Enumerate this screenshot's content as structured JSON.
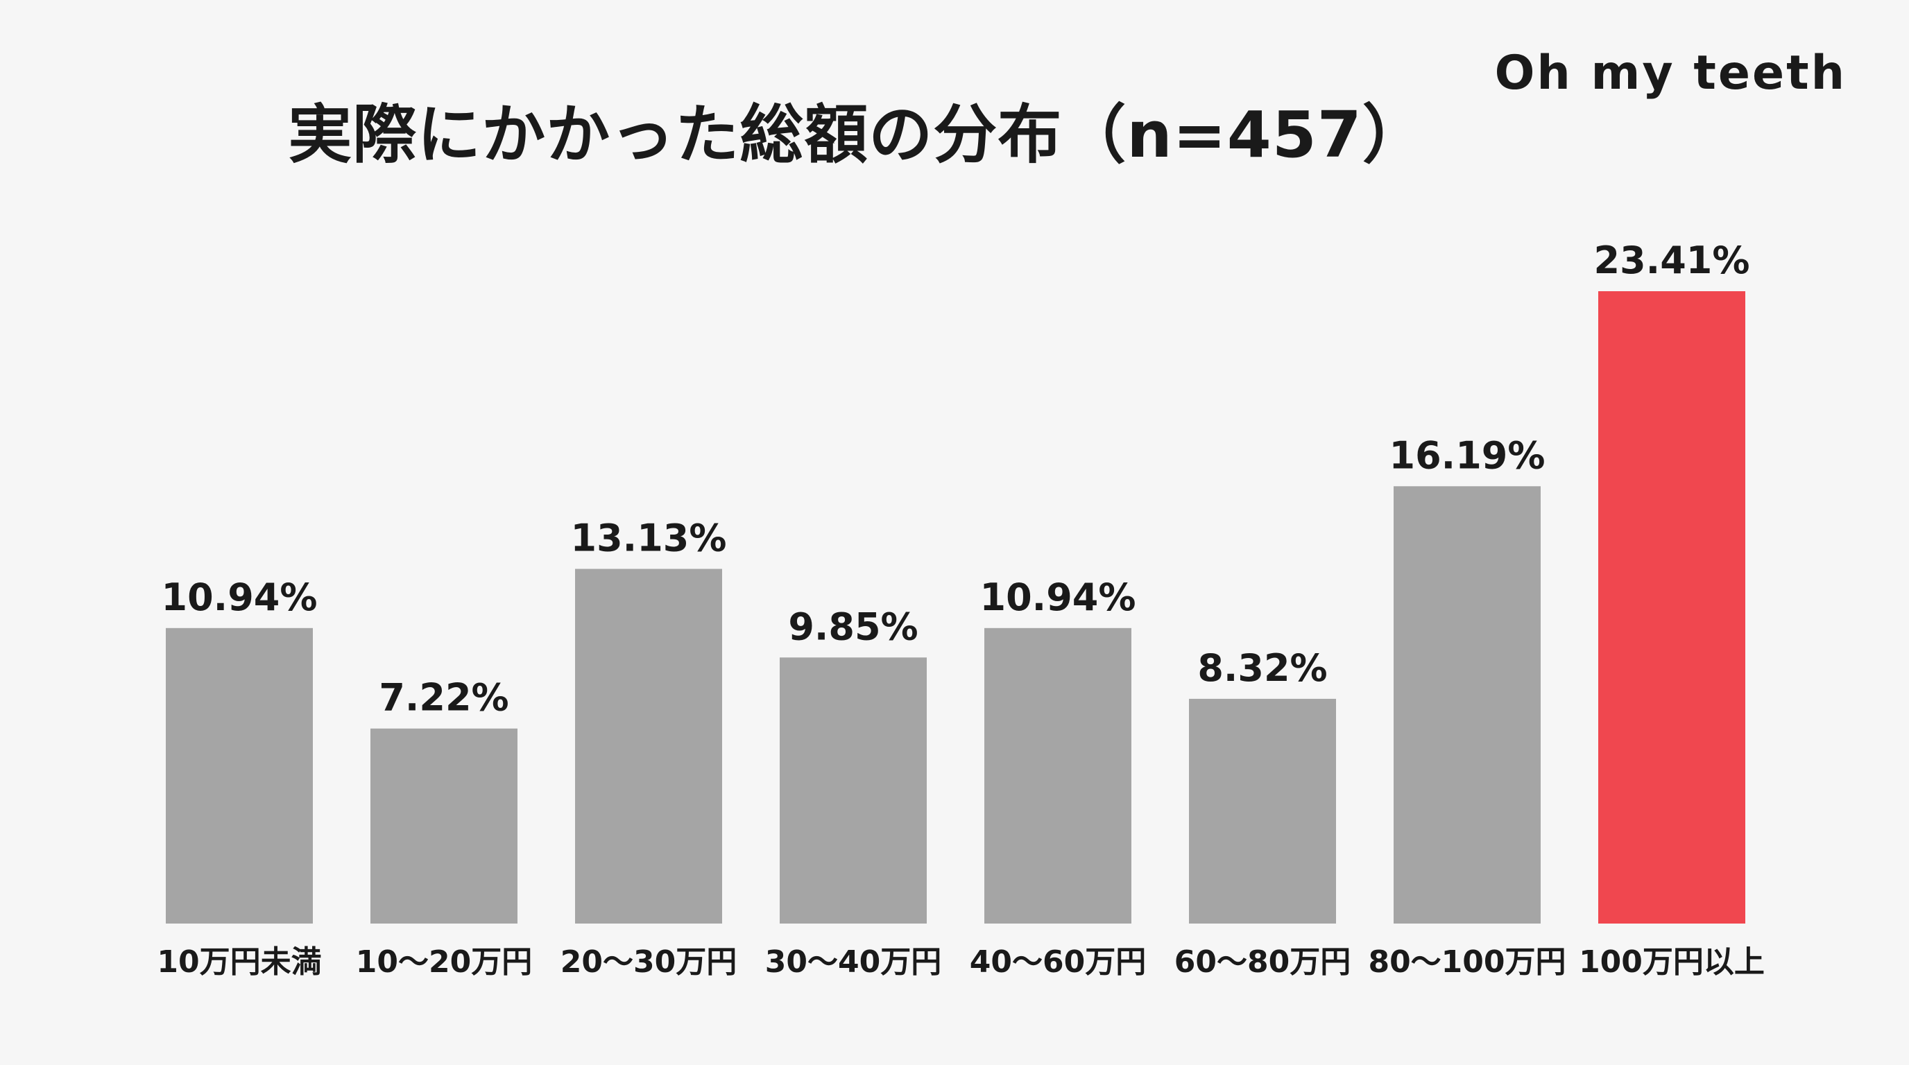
{
  "chart_data": {
    "type": "bar",
    "title": "実際にかかった総額の分布（n=457）",
    "brand": "Oh my teeth",
    "categories": [
      "10万円未満",
      "10〜20万円",
      "20〜30万円",
      "30〜40万円",
      "40〜60万円",
      "60〜80万円",
      "80〜100万円",
      "100万円以上"
    ],
    "values": [
      10.94,
      7.22,
      13.13,
      9.85,
      10.94,
      8.32,
      16.19,
      23.41
    ],
    "value_labels": [
      "10.94%",
      "7.22%",
      "13.13%",
      "9.85%",
      "10.94%",
      "8.32%",
      "16.19%",
      "23.41%"
    ],
    "xlabel": "",
    "ylabel": "",
    "ylim": [
      0,
      23.41
    ],
    "grid": false,
    "colors": {
      "default_bar": "#a5a5a5",
      "highlight_bar": "#f0474f",
      "background": "#f6f6f6",
      "text": "#1a1a1a"
    },
    "highlight_index": 7
  }
}
